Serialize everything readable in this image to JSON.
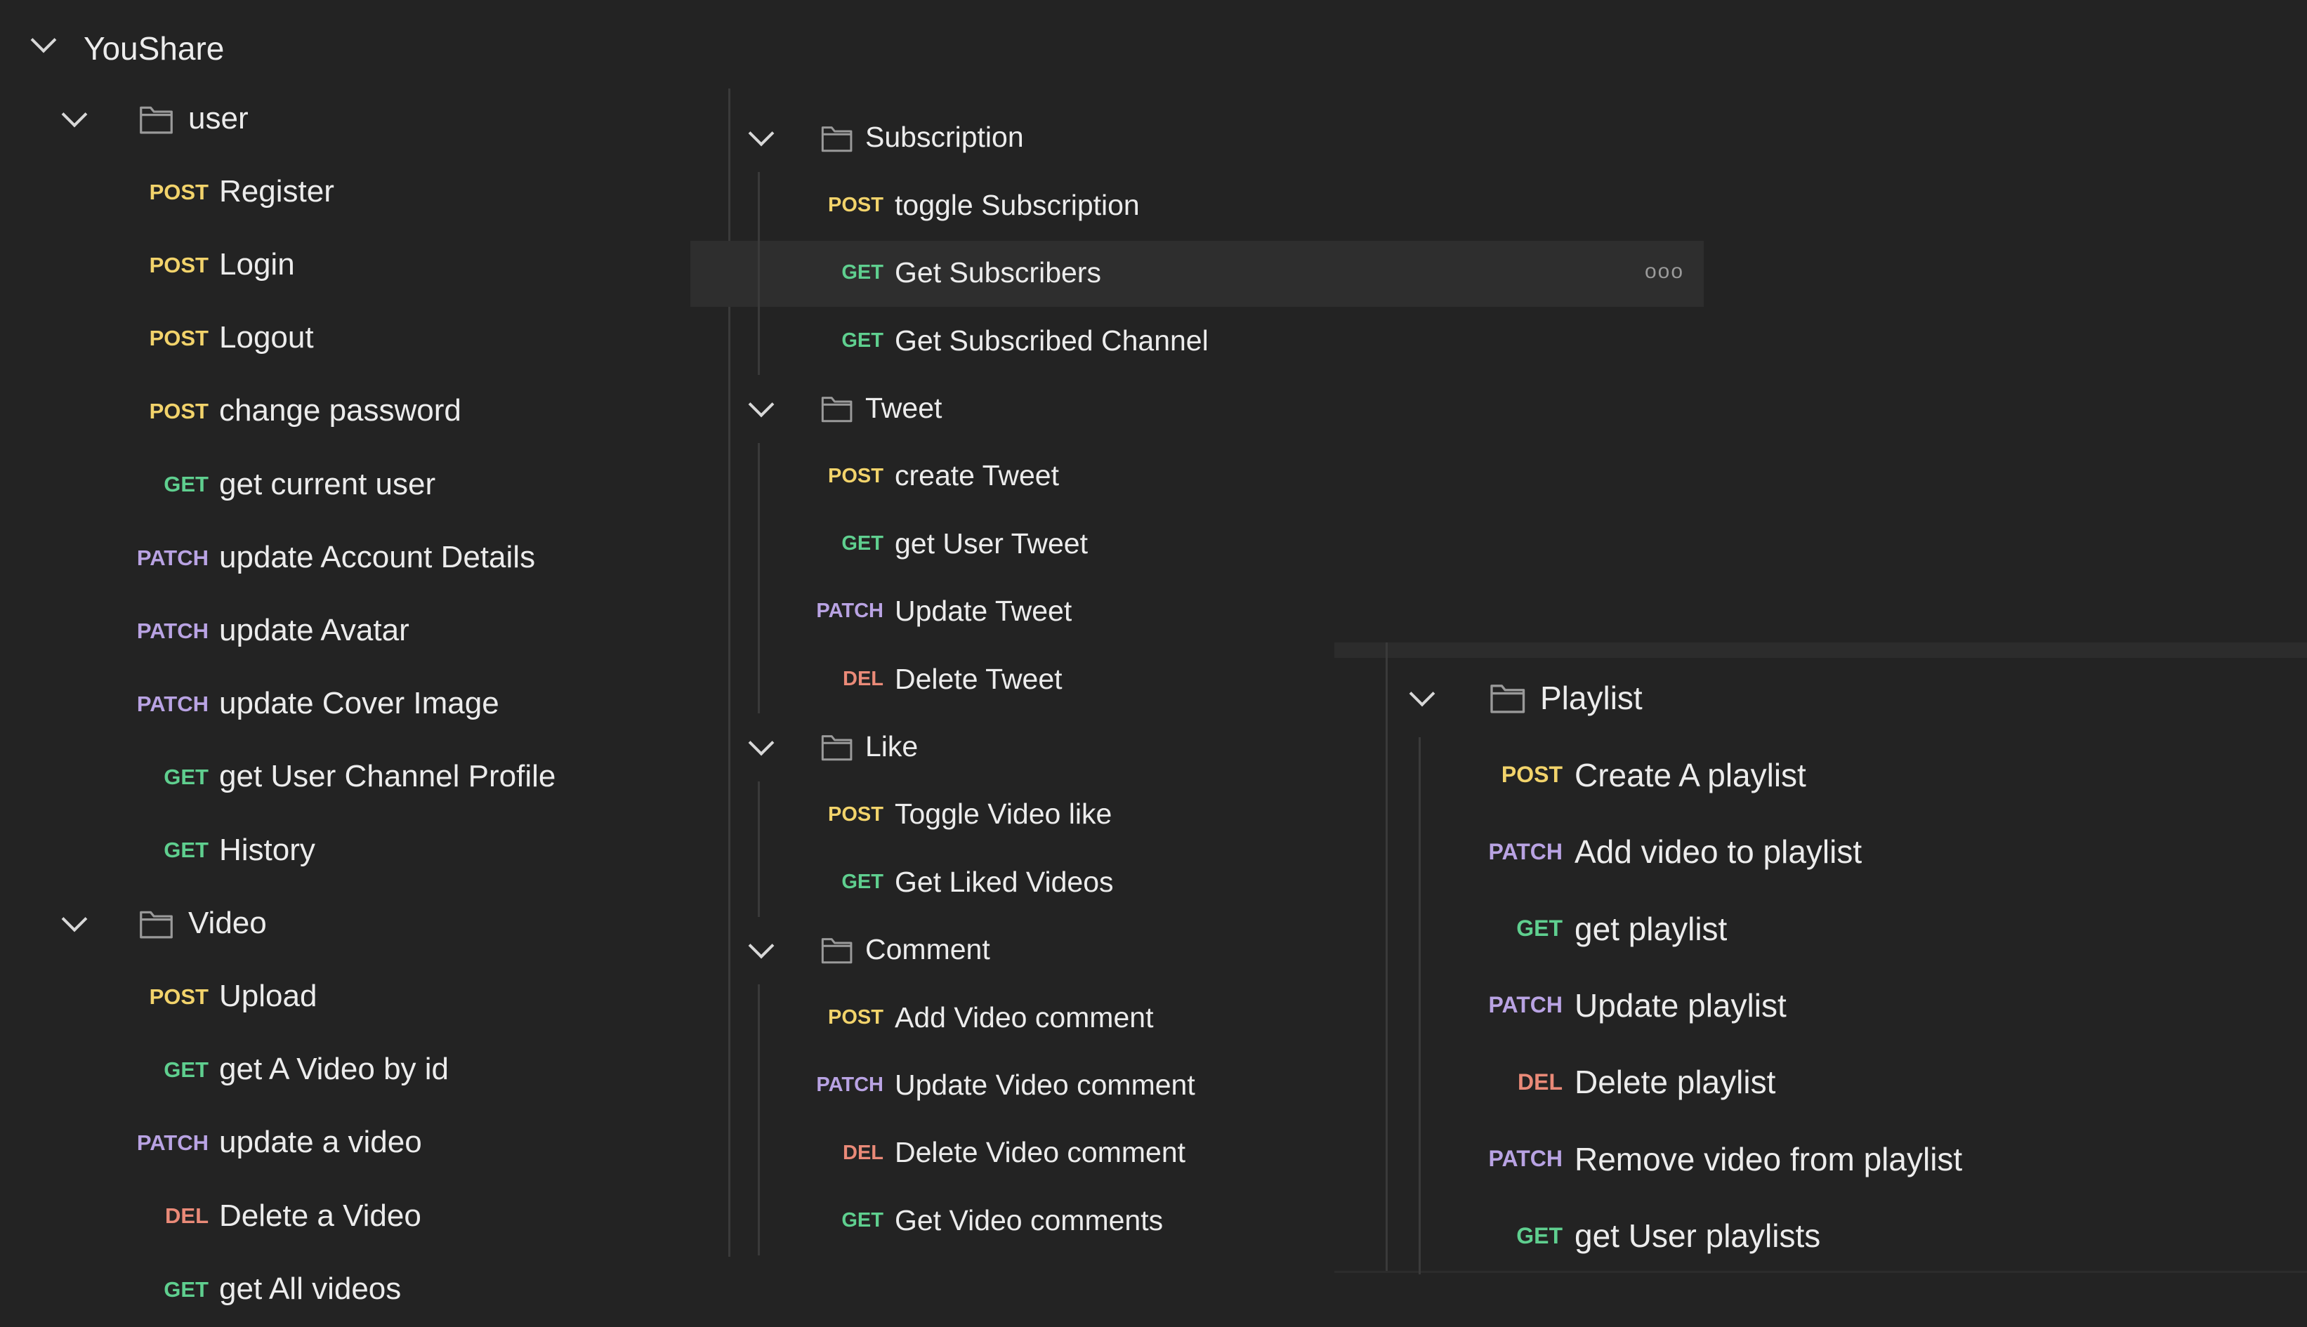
{
  "colors": {
    "background": "#232323",
    "POST": "#f2d36b",
    "GET": "#5fcf8f",
    "PATCH": "#b9a3e3",
    "DEL": "#ea8a78",
    "text": "#ececec",
    "highlight": "#2e2e2e"
  },
  "collection": {
    "title": "YouShare",
    "expanded": true
  },
  "panels": [
    {
      "folders": [
        {
          "name": "user",
          "icon": "folder-icon",
          "items": [
            {
              "method": "POST",
              "name": "Register"
            },
            {
              "method": "POST",
              "name": "Login"
            },
            {
              "method": "POST",
              "name": "Logout"
            },
            {
              "method": "POST",
              "name": "change password"
            },
            {
              "method": "GET",
              "name": "get current user"
            },
            {
              "method": "PATCH",
              "name": "update Account Details"
            },
            {
              "method": "PATCH",
              "name": "update Avatar"
            },
            {
              "method": "PATCH",
              "name": "update Cover Image"
            },
            {
              "method": "GET",
              "name": "get User Channel Profile"
            },
            {
              "method": "GET",
              "name": "History"
            }
          ]
        },
        {
          "name": "Video",
          "icon": "folder-icon",
          "items": [
            {
              "method": "POST",
              "name": "Upload"
            },
            {
              "method": "GET",
              "name": "get A Video by id"
            },
            {
              "method": "PATCH",
              "name": "update a video"
            },
            {
              "method": "DEL",
              "name": "Delete a Video"
            },
            {
              "method": "GET",
              "name": "get All videos"
            }
          ]
        }
      ]
    },
    {
      "folders": [
        {
          "name": "Subscription",
          "icon": "folder-icon",
          "items": [
            {
              "method": "POST",
              "name": "toggle Subscription"
            },
            {
              "method": "GET",
              "name": "Get Subscribers",
              "hovered": true,
              "more_icon": "more-options-icon"
            },
            {
              "method": "GET",
              "name": "Get Subscribed Channel"
            }
          ]
        },
        {
          "name": "Tweet",
          "icon": "folder-icon",
          "items": [
            {
              "method": "POST",
              "name": "create Tweet"
            },
            {
              "method": "GET",
              "name": "get User Tweet"
            },
            {
              "method": "PATCH",
              "name": "Update Tweet"
            },
            {
              "method": "DEL",
              "name": "Delete Tweet"
            }
          ]
        },
        {
          "name": "Like",
          "icon": "folder-icon",
          "items": [
            {
              "method": "POST",
              "name": "Toggle Video like"
            },
            {
              "method": "GET",
              "name": "Get Liked Videos"
            }
          ]
        },
        {
          "name": "Comment",
          "icon": "folder-icon",
          "items": [
            {
              "method": "POST",
              "name": "Add Video comment"
            },
            {
              "method": "PATCH",
              "name": "Update Video comment"
            },
            {
              "method": "DEL",
              "name": "Delete Video comment"
            },
            {
              "method": "GET",
              "name": "Get Video comments"
            }
          ]
        }
      ]
    },
    {
      "folders": [
        {
          "name": "Playlist",
          "icon": "folder-icon",
          "items": [
            {
              "method": "POST",
              "name": "Create A playlist"
            },
            {
              "method": "PATCH",
              "name": "Add video to playlist"
            },
            {
              "method": "GET",
              "name": "get playlist"
            },
            {
              "method": "PATCH",
              "name": "Update playlist"
            },
            {
              "method": "DEL",
              "name": "Delete playlist"
            },
            {
              "method": "PATCH",
              "name": "Remove video from playlist"
            },
            {
              "method": "GET",
              "name": "get User playlists"
            }
          ]
        }
      ]
    }
  ],
  "more_label": "ooo"
}
